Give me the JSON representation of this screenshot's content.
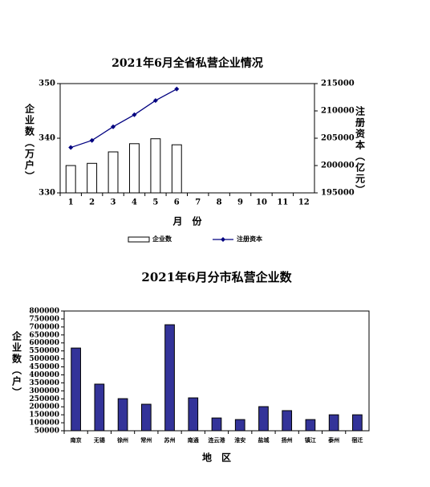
{
  "chart_data": [
    {
      "type": "bar",
      "title": "2021年6月全省私营企业情况",
      "categories": [
        "1",
        "2",
        "3",
        "4",
        "5",
        "6",
        "7",
        "8",
        "9",
        "10",
        "11",
        "12"
      ],
      "series": [
        {
          "name": "企业数",
          "type": "bar",
          "color": "#ffffff",
          "values": [
            335.0,
            335.4,
            337.5,
            339.0,
            339.9,
            338.8,
            null,
            null,
            null,
            null,
            null,
            null
          ]
        },
        {
          "name": "注册资本",
          "type": "line",
          "axis": "y2",
          "color": "#000080",
          "values": [
            203300,
            204600,
            207100,
            209300,
            211900,
            214000,
            null,
            null,
            null,
            null,
            null,
            null
          ]
        }
      ],
      "ylim": [
        330,
        350
      ],
      "yticks": [
        330,
        340,
        350
      ],
      "y2lim": [
        195000,
        215000
      ],
      "y2ticks": [
        195000,
        200000,
        205000,
        210000,
        215000
      ],
      "x_label": "月　份",
      "y_label": "企业数（万户）",
      "y2_label": "注册资本（亿元）",
      "legend": "bottom"
    },
    {
      "type": "bar",
      "title": "2021年6月分市私营企业数",
      "categories": [
        "南京",
        "无锡",
        "徐州",
        "常州",
        "苏州",
        "南通",
        "连云港",
        "淮安",
        "盐城",
        "扬州",
        "镇江",
        "泰州",
        "宿迁"
      ],
      "series": [
        {
          "name": "企业数",
          "type": "bar",
          "color": "#333399",
          "values": [
            568000,
            342000,
            251000,
            216000,
            714000,
            256000,
            130000,
            120000,
            201000,
            176000,
            120000,
            150000,
            150000
          ]
        }
      ],
      "ylim": [
        50000,
        800000
      ],
      "yticks": [
        50000,
        100000,
        150000,
        200000,
        250000,
        300000,
        350000,
        400000,
        450000,
        500000,
        550000,
        600000,
        650000,
        700000,
        750000,
        800000
      ],
      "x_label": "地　区",
      "y_label": "企业数（户）"
    }
  ]
}
